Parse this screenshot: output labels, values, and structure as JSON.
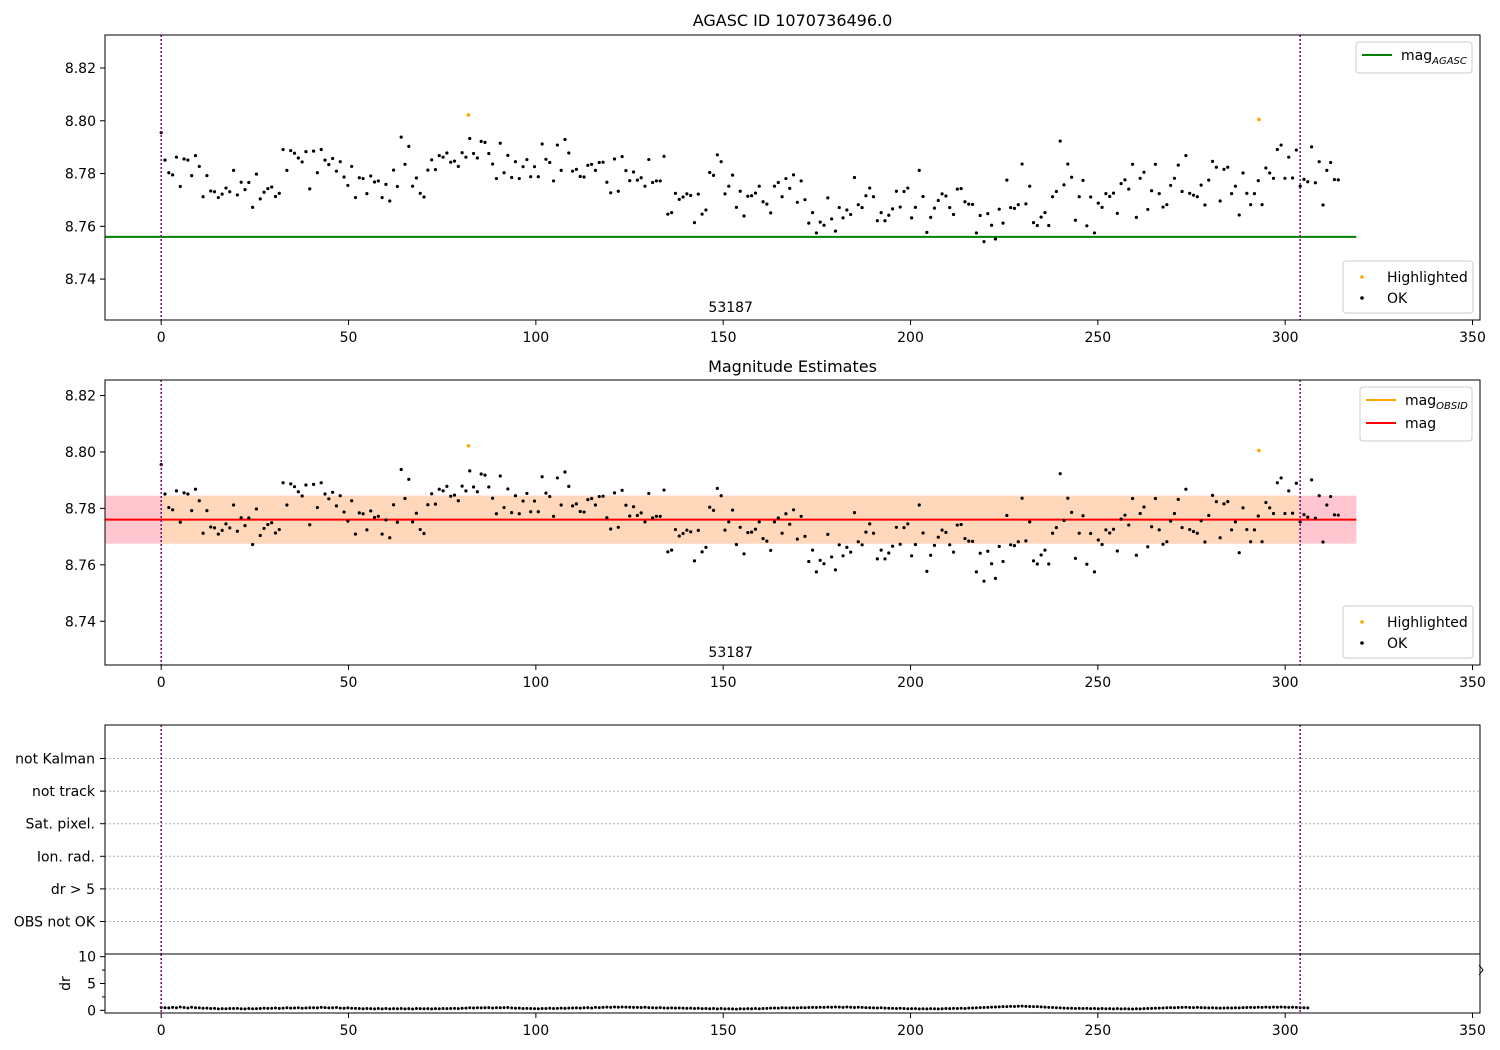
{
  "chart_data": [
    {
      "type": "scatter",
      "title": "AGASC ID 1070736496.0",
      "xlim": [
        -15,
        352
      ],
      "ylim": [
        8.7245,
        8.8325
      ],
      "xticks": [
        0,
        50,
        100,
        150,
        200,
        250,
        300,
        350
      ],
      "yticks": [
        8.74,
        8.76,
        8.78,
        8.8,
        8.82
      ],
      "ytick_labels": [
        "8.74",
        "8.76",
        "8.78",
        "8.80",
        "8.82"
      ],
      "obsid_label": "53187",
      "obsid_label_x": 152,
      "obsid_boundaries": [
        0,
        304
      ],
      "reference_lines": [
        {
          "name": "mag",
          "sub": "AGASC",
          "value": 8.756,
          "x_range": [
            -15,
            319
          ],
          "color": "#008000"
        }
      ],
      "highlighted": {
        "name": "Highlighted",
        "color": "#ffa500",
        "points": [
          [
            82,
            8.8022
          ],
          [
            293,
            8.8005
          ]
        ]
      },
      "ok_series_name": "OK",
      "legend_lines": "top-right",
      "legend_points": "bottom-right"
    },
    {
      "type": "scatter",
      "title": "Magnitude Estimates",
      "xlim": [
        -15,
        352
      ],
      "ylim": [
        8.7245,
        8.8255
      ],
      "xticks": [
        0,
        50,
        100,
        150,
        200,
        250,
        300,
        350
      ],
      "yticks": [
        8.74,
        8.76,
        8.78,
        8.8,
        8.82
      ],
      "ytick_labels": [
        "8.74",
        "8.76",
        "8.78",
        "8.80",
        "8.82"
      ],
      "obsid_label": "53187",
      "obsid_label_x": 152,
      "obsid_boundaries": [
        0,
        304
      ],
      "reference_lines": [
        {
          "name": "mag",
          "sub": "OBSID",
          "value": 8.776,
          "x_range": [
            0,
            304
          ],
          "color": "#ffa500"
        },
        {
          "name": "mag",
          "sub": "",
          "value": 8.776,
          "x_range": [
            -15,
            319
          ],
          "color": "#ff0000"
        }
      ],
      "bands": [
        {
          "y_range": [
            8.7675,
            8.7845
          ],
          "x_range": [
            -15,
            319
          ],
          "color": "#ffc0cb"
        },
        {
          "y_range": [
            8.7675,
            8.7845
          ],
          "x_range": [
            0,
            304
          ],
          "color": "#ffd8b8"
        }
      ],
      "highlighted": {
        "name": "Highlighted",
        "color": "#ffa500",
        "points": [
          [
            82,
            8.8022
          ],
          [
            293,
            8.8005
          ]
        ]
      },
      "ok_series_name": "OK",
      "legend_lines": "top-right",
      "legend_points": "bottom-right"
    },
    {
      "type": "scatter",
      "title": "",
      "flag_rows": [
        "not Kalman",
        "not track",
        "Sat. pixel.",
        "Ion. rad.",
        "dr > 5",
        "OBS not OK"
      ],
      "xlim": [
        -15,
        352
      ],
      "obsid_boundaries": [
        0,
        304
      ]
    },
    {
      "type": "scatter",
      "title": "",
      "ylabel": "dr",
      "xlim": [
        -15,
        352
      ],
      "ylim": [
        -0.5,
        10.5
      ],
      "yticks": [
        0,
        5,
        10
      ],
      "xticks": [
        0,
        50,
        100,
        150,
        200,
        250,
        300,
        350
      ],
      "dr_range": [
        0.1,
        0.9
      ],
      "obsid_boundaries": [
        0,
        304
      ]
    }
  ],
  "ok_points": {
    "x_range": [
      0,
      304
    ],
    "n": 300,
    "mag_y": [
      8.7955,
      8.7851,
      8.7803,
      8.7795,
      8.7862,
      8.7751,
      8.7855,
      8.7851,
      8.7792,
      8.7868,
      8.7827,
      8.7712,
      8.7792,
      8.7734,
      8.7731,
      8.7709,
      8.7722,
      8.7745,
      8.7731,
      8.7812,
      8.7719,
      8.7767,
      8.7739,
      8.7766,
      8.7672,
      8.7798,
      8.7704,
      8.7729,
      8.7743,
      8.7749,
      8.7713,
      8.7725,
      8.7891,
      8.7812,
      8.7887,
      8.7877,
      8.7859,
      8.7844,
      8.7883,
      8.7742,
      8.7885,
      8.7803,
      8.7891,
      8.7851,
      8.7834,
      8.7857,
      8.7809,
      8.7845,
      8.7787,
      8.7755,
      8.7827,
      8.7709,
      8.7784,
      8.7781,
      8.7724,
      8.7791,
      8.7768,
      8.7772,
      8.7709,
      8.7759,
      8.7696,
      8.7813,
      8.7751,
      8.7938,
      8.7835,
      8.7903,
      8.7752,
      8.7783,
      8.7725,
      8.7711,
      8.7813,
      8.7852,
      8.7815,
      8.7868,
      8.7862,
      8.7878,
      8.7843,
      8.7847,
      8.7827,
      8.7879,
      8.7862,
      8.7933,
      8.7876,
      8.7859,
      8.7922,
      8.7918,
      8.7876,
      8.7836,
      8.7781,
      8.7915,
      8.7803,
      8.7869,
      8.7785,
      8.7845,
      8.7781,
      8.7826,
      8.7853,
      8.7788,
      8.7826,
      8.7788,
      8.7912,
      8.7854,
      8.7842,
      8.7772,
      8.7908,
      8.7812,
      8.7929,
      8.7878,
      8.7809,
      8.7816,
      8.7789,
      8.7787,
      8.7831,
      8.7835,
      8.7812,
      8.7842,
      8.7843,
      8.7767,
      8.7727,
      8.7855,
      8.7733,
      8.7864,
      8.7811,
      8.7773,
      8.7806,
      8.7775,
      8.7784,
      8.7752,
      8.7853,
      8.7766,
      8.7772,
      8.7772,
      8.7865,
      8.7646,
      8.7652,
      8.7725,
      8.7702,
      8.7711,
      8.7723,
      8.7717,
      8.7614,
      8.7722,
      8.7646,
      8.7662,
      8.7804,
      8.7793,
      8.7871,
      8.7845,
      8.7723,
      8.7752,
      8.7794,
      8.7672,
      8.7733,
      8.7639,
      8.7714,
      8.7716,
      8.7726,
      8.7752,
      8.7693,
      8.7684,
      8.7651,
      8.7752,
      8.7766,
      8.7712,
      8.7781,
      8.7744,
      8.7795,
      8.7691,
      8.7772,
      8.7701,
      8.7612,
      8.7652,
      8.7575,
      8.7616,
      8.7604,
      8.7708,
      8.7628,
      8.7582,
      8.7671,
      8.7632,
      8.7662,
      8.7645,
      8.7785,
      8.7682,
      8.7671,
      8.7716,
      8.7745,
      8.7712,
      8.7621,
      8.7652,
      8.7621,
      8.7642,
      8.7666,
      8.7733,
      8.7673,
      8.7732,
      8.7745,
      8.7632,
      8.7672,
      8.7812,
      8.7713,
      8.7577,
      8.7634,
      8.7669,
      8.7698,
      8.7723,
      8.7715,
      8.7671,
      8.7645,
      8.7741,
      8.7743,
      8.7693,
      8.7684,
      8.7683,
      8.7575,
      8.7641,
      8.7542,
      8.7648,
      8.7604,
      8.7552,
      8.7665,
      8.7612,
      8.7775,
      8.7671,
      8.7668,
      8.7682,
      8.7836,
      8.7685,
      8.7752,
      8.7614,
      8.7603,
      8.7635,
      8.7652,
      8.7603,
      8.7712,
      8.7732,
      8.7923,
      8.7757,
      8.7836,
      8.7786,
      8.7623,
      8.7712,
      8.7774,
      8.7602,
      8.7711,
      8.7575,
      8.7688,
      8.7672,
      8.7724,
      8.7713,
      8.7726,
      8.7649,
      8.7762,
      8.7776,
      8.7741,
      8.7835,
      8.7634,
      8.7782,
      8.7805,
      8.7664,
      8.7735,
      8.7835,
      8.7724,
      8.7673,
      8.7682,
      8.7755,
      8.7782,
      8.7832,
      8.7732,
      8.7868,
      8.7725,
      8.7718,
      8.7712,
      8.7756,
      8.7681,
      8.7775,
      8.7846,
      8.7824,
      8.7696,
      8.7816,
      8.7824,
      8.7724,
      8.7752,
      8.7643,
      8.7802,
      8.7725,
      8.7682,
      8.7724,
      8.7773,
      8.7682,
      8.7821,
      8.7802,
      8.7782,
      8.7891,
      8.7908,
      8.7782,
      8.7862,
      8.7783,
      8.7889,
      8.7752,
      8.7778,
      8.7769,
      8.7901,
      8.7765,
      8.7845,
      8.7681,
      8.7812,
      8.7842,
      8.7777,
      8.7776
    ],
    "dr_y": [
      0.52,
      0.48,
      0.45,
      0.55,
      0.47,
      0.61,
      0.52,
      0.43,
      0.57,
      0.49,
      0.46,
      0.38,
      0.41,
      0.33,
      0.36,
      0.28,
      0.31,
      0.29,
      0.35,
      0.33,
      0.36,
      0.3,
      0.27,
      0.33,
      0.29,
      0.31,
      0.35,
      0.42,
      0.37,
      0.39,
      0.43,
      0.37,
      0.42,
      0.47,
      0.4,
      0.43,
      0.47,
      0.39,
      0.44,
      0.48,
      0.49,
      0.46,
      0.55,
      0.51,
      0.45,
      0.47,
      0.52,
      0.42,
      0.39,
      0.46,
      0.38,
      0.36,
      0.35,
      0.29,
      0.33,
      0.31,
      0.26,
      0.34,
      0.28,
      0.35,
      0.26,
      0.32,
      0.3,
      0.33,
      0.27,
      0.32,
      0.25,
      0.34,
      0.31,
      0.29,
      0.31,
      0.26,
      0.32,
      0.29,
      0.35,
      0.31,
      0.35,
      0.37,
      0.31,
      0.39,
      0.42,
      0.47,
      0.44,
      0.49,
      0.46,
      0.48,
      0.51,
      0.44,
      0.49,
      0.47,
      0.5,
      0.52,
      0.44,
      0.38,
      0.42,
      0.35,
      0.37,
      0.33,
      0.31,
      0.29,
      0.34,
      0.35,
      0.4,
      0.33,
      0.37,
      0.42,
      0.36,
      0.4,
      0.43,
      0.46,
      0.42,
      0.48,
      0.5,
      0.44,
      0.54,
      0.51,
      0.56,
      0.59,
      0.55,
      0.62,
      0.57,
      0.61,
      0.6,
      0.58,
      0.54,
      0.55,
      0.52,
      0.57,
      0.5,
      0.48,
      0.46,
      0.51,
      0.44,
      0.42,
      0.46,
      0.4,
      0.43,
      0.41,
      0.36,
      0.4,
      0.35,
      0.38,
      0.32,
      0.34,
      0.3,
      0.34,
      0.28,
      0.33,
      0.26,
      0.3,
      0.28,
      0.23,
      0.29,
      0.26,
      0.31,
      0.29,
      0.34,
      0.3,
      0.35,
      0.37,
      0.4,
      0.44,
      0.41,
      0.47,
      0.45,
      0.43,
      0.48,
      0.46,
      0.5,
      0.49,
      0.53,
      0.55,
      0.52,
      0.58,
      0.55,
      0.6,
      0.57,
      0.62,
      0.59,
      0.56,
      0.61,
      0.57,
      0.53,
      0.58,
      0.55,
      0.51,
      0.49,
      0.46,
      0.44,
      0.47,
      0.42,
      0.39,
      0.36,
      0.33,
      0.38,
      0.34,
      0.29,
      0.32,
      0.31,
      0.27,
      0.3,
      0.28,
      0.32,
      0.3,
      0.26,
      0.29,
      0.33,
      0.31,
      0.36,
      0.33,
      0.38,
      0.34,
      0.41,
      0.43,
      0.45,
      0.5,
      0.53,
      0.55,
      0.59,
      0.62,
      0.65,
      0.68,
      0.7,
      0.74,
      0.72,
      0.75,
      0.78,
      0.74,
      0.71,
      0.68,
      0.69,
      0.65,
      0.6,
      0.56,
      0.52,
      0.49,
      0.45,
      0.42,
      0.38,
      0.39,
      0.35,
      0.37,
      0.33,
      0.36,
      0.31,
      0.34,
      0.3,
      0.33,
      0.29,
      0.31,
      0.28,
      0.31,
      0.27,
      0.3,
      0.28,
      0.25,
      0.29,
      0.26,
      0.31,
      0.34,
      0.36,
      0.38,
      0.42,
      0.44,
      0.47,
      0.5,
      0.48,
      0.52,
      0.55,
      0.57,
      0.53,
      0.5,
      0.54,
      0.51,
      0.48,
      0.45,
      0.47,
      0.44,
      0.41,
      0.43,
      0.46,
      0.43,
      0.48,
      0.45,
      0.5,
      0.53,
      0.55,
      0.52,
      0.57,
      0.54,
      0.59,
      0.56,
      0.6,
      0.58,
      0.62,
      0.57,
      0.55,
      0.58,
      0.54,
      0.51,
      0.49,
      0.46
    ]
  }
}
